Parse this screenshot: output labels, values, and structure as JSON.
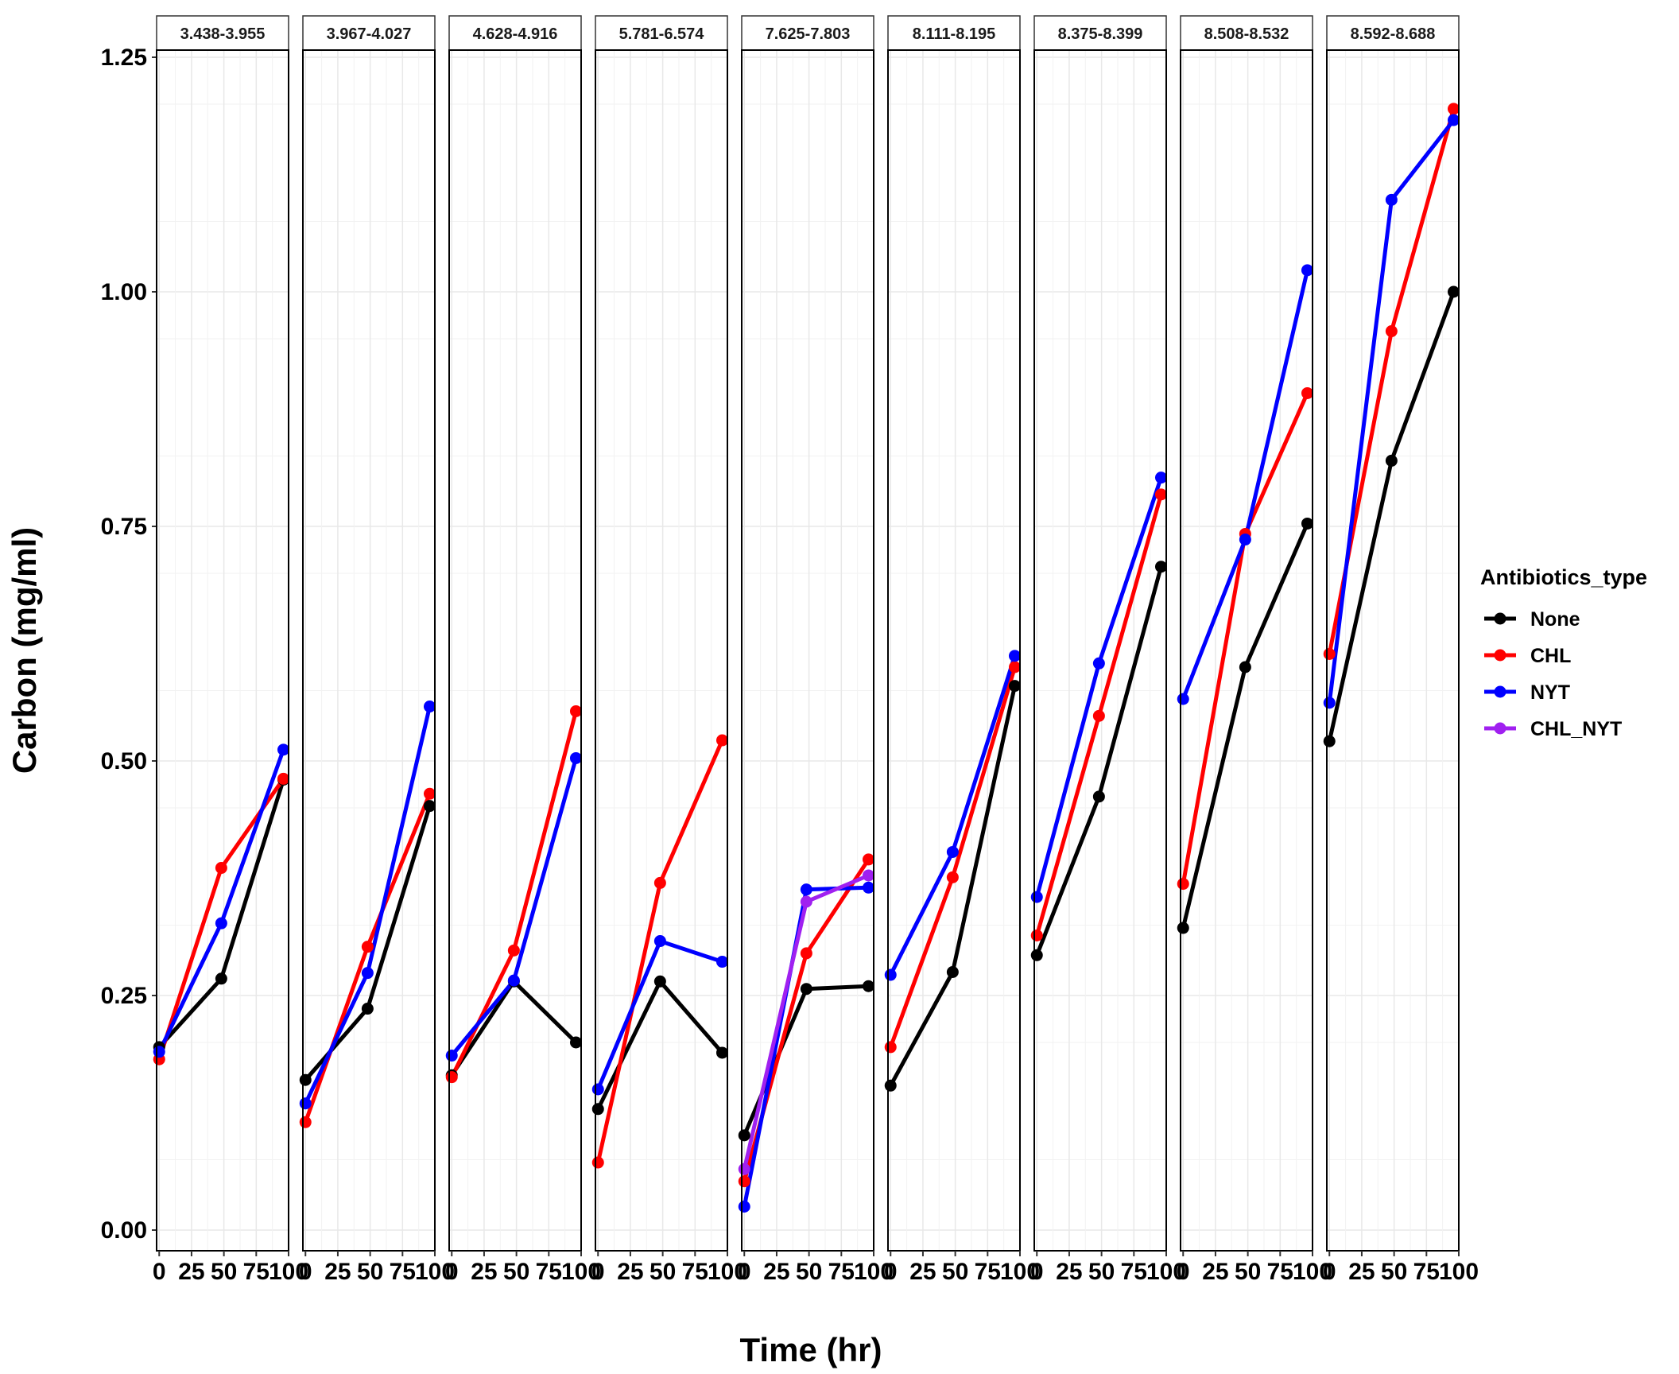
{
  "chart_data": {
    "type": "line",
    "xlabel": "Time (hr)",
    "ylabel": "Carbon (mg/ml)",
    "ylim": [
      -0.05,
      1.25
    ],
    "xlim": [
      -2,
      100
    ],
    "y_ticks": [
      0.0,
      0.25,
      0.5,
      0.75,
      1.0,
      1.25
    ],
    "y_tick_labels": [
      "0.00",
      "0.25",
      "0.50",
      "0.75",
      "1.00",
      "1.25"
    ],
    "x_ticks": [
      0,
      25,
      50,
      75,
      100
    ],
    "x_tick_labels": [
      "0",
      "25",
      "50",
      "75",
      "100"
    ],
    "grid": true,
    "legend": {
      "title": "Antibiotics_type",
      "position": "right",
      "entries": [
        "None",
        "CHL",
        "NYT",
        "CHL_NYT"
      ]
    },
    "series_colors": {
      "None": "#000000",
      "CHL": "#ff0000",
      "NYT": "#0000ff",
      "CHL_NYT": "#a020f0"
    },
    "panels": [
      {
        "label": "3.438-3.955",
        "series": [
          {
            "name": "None",
            "x": [
              0,
              48,
              96
            ],
            "y": [
              0.195,
              0.268,
              0.48
            ]
          },
          {
            "name": "CHL",
            "x": [
              0,
              48,
              96
            ],
            "y": [
              0.182,
              0.386,
              0.481
            ]
          },
          {
            "name": "NYT",
            "x": [
              0,
              48,
              96
            ],
            "y": [
              0.19,
              0.327,
              0.512
            ]
          }
        ]
      },
      {
        "label": "3.967-4.027",
        "series": [
          {
            "name": "None",
            "x": [
              0,
              48,
              96
            ],
            "y": [
              0.16,
              0.236,
              0.452
            ]
          },
          {
            "name": "CHL",
            "x": [
              0,
              48,
              96
            ],
            "y": [
              0.115,
              0.302,
              0.465
            ]
          },
          {
            "name": "NYT",
            "x": [
              0,
              48,
              96
            ],
            "y": [
              0.135,
              0.274,
              0.558
            ]
          }
        ]
      },
      {
        "label": "4.628-4.916",
        "series": [
          {
            "name": "None",
            "x": [
              0,
              48,
              96
            ],
            "y": [
              0.165,
              0.265,
              0.2
            ]
          },
          {
            "name": "CHL",
            "x": [
              0,
              48,
              96
            ],
            "y": [
              0.163,
              0.298,
              0.553
            ]
          },
          {
            "name": "NYT",
            "x": [
              0,
              48,
              96
            ],
            "y": [
              0.186,
              0.266,
              0.503
            ]
          }
        ]
      },
      {
        "label": "5.781-6.574",
        "series": [
          {
            "name": "None",
            "x": [
              0,
              48,
              96
            ],
            "y": [
              0.129,
              0.265,
              0.189
            ]
          },
          {
            "name": "CHL",
            "x": [
              0,
              48,
              96
            ],
            "y": [
              0.072,
              0.37,
              0.522
            ]
          },
          {
            "name": "NYT",
            "x": [
              0,
              48,
              96
            ],
            "y": [
              0.15,
              0.308,
              0.286
            ]
          }
        ]
      },
      {
        "label": "7.625-7.803",
        "series": [
          {
            "name": "None",
            "x": [
              0,
              48,
              96
            ],
            "y": [
              0.101,
              0.257,
              0.26
            ]
          },
          {
            "name": "CHL",
            "x": [
              0,
              48,
              96
            ],
            "y": [
              0.052,
              0.295,
              0.395
            ]
          },
          {
            "name": "NYT",
            "x": [
              0,
              48,
              96
            ],
            "y": [
              0.025,
              0.363,
              0.365
            ]
          },
          {
            "name": "CHL_NYT",
            "x": [
              0,
              48,
              96
            ],
            "y": [
              0.065,
              0.35,
              0.378
            ]
          }
        ]
      },
      {
        "label": "8.111-8.195",
        "series": [
          {
            "name": "None",
            "x": [
              0,
              48,
              96
            ],
            "y": [
              0.154,
              0.275,
              0.58
            ]
          },
          {
            "name": "CHL",
            "x": [
              0,
              48,
              96
            ],
            "y": [
              0.195,
              0.376,
              0.6
            ]
          },
          {
            "name": "NYT",
            "x": [
              0,
              48,
              96
            ],
            "y": [
              0.272,
              0.403,
              0.612
            ]
          }
        ]
      },
      {
        "label": "8.375-8.399",
        "series": [
          {
            "name": "None",
            "x": [
              0,
              48,
              96
            ],
            "y": [
              0.293,
              0.462,
              0.707
            ]
          },
          {
            "name": "CHL",
            "x": [
              0,
              48,
              96
            ],
            "y": [
              0.314,
              0.548,
              0.784
            ]
          },
          {
            "name": "NYT",
            "x": [
              0,
              48,
              96
            ],
            "y": [
              0.355,
              0.604,
              0.802
            ]
          }
        ]
      },
      {
        "label": "8.508-8.532",
        "series": [
          {
            "name": "None",
            "x": [
              0,
              48,
              96
            ],
            "y": [
              0.322,
              0.6,
              0.753
            ]
          },
          {
            "name": "CHL",
            "x": [
              0,
              48,
              96
            ],
            "y": [
              0.369,
              0.742,
              0.892
            ]
          },
          {
            "name": "NYT",
            "x": [
              0,
              48,
              96
            ],
            "y": [
              0.566,
              0.736,
              1.023
            ]
          }
        ]
      },
      {
        "label": "8.592-8.688",
        "series": [
          {
            "name": "None",
            "x": [
              0,
              48,
              96
            ],
            "y": [
              0.521,
              0.82,
              1.0
            ]
          },
          {
            "name": "CHL",
            "x": [
              0,
              48,
              96
            ],
            "y": [
              0.614,
              0.958,
              1.195
            ]
          },
          {
            "name": "NYT",
            "x": [
              0,
              48,
              96
            ],
            "y": [
              0.562,
              1.098,
              1.183
            ]
          }
        ]
      }
    ]
  }
}
